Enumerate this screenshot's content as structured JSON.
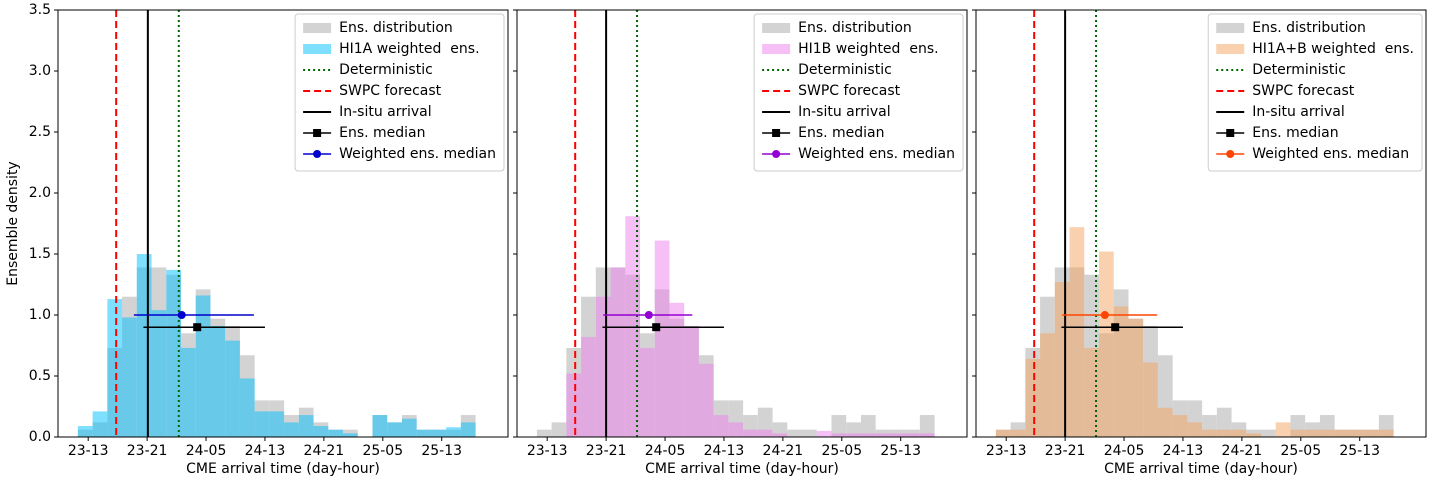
{
  "chart_data": [
    {
      "type": "histogram",
      "ylabel": "Ensemble density",
      "xlabel": "CME arrival time (day-hour)",
      "bins": [
        11.6,
        13.6,
        15.6,
        17.6,
        19.6,
        21.6,
        23.6,
        25.6,
        27.6,
        29.6,
        31.6,
        33.6,
        35.6,
        37.6,
        39.6,
        41.6,
        43.6,
        45.6,
        47.6,
        49.6,
        51.6,
        53.6,
        55.6,
        57.6,
        59.6,
        61.6,
        63.6,
        65.6
      ],
      "series": [
        {
          "name": "Ens. distribution",
          "color": "#d3d3d3",
          "alpha": 1,
          "values": [
            0.06,
            0.12,
            0.73,
            1.15,
            1.39,
            1.39,
            1.33,
            0.85,
            1.21,
            0.97,
            0.91,
            0.67,
            0.3,
            0.3,
            0.18,
            0.24,
            0.12,
            0.06,
            0.06,
            0,
            0.18,
            0.12,
            0.18,
            0.06,
            0.06,
            0.06,
            0.18
          ]
        },
        {
          "name": "HI1A weighted  ens.",
          "color": "#00bfff",
          "alpha": 0.5,
          "values": [
            0.09,
            0.21,
            1.13,
            0.98,
            1.5,
            1.04,
            1.37,
            0.73,
            1.16,
            0.91,
            0.79,
            0.48,
            0.21,
            0.21,
            0.12,
            0.18,
            0.09,
            0.06,
            0.03,
            0,
            0.18,
            0.12,
            0.15,
            0.06,
            0.06,
            0.08,
            0.12
          ]
        }
      ],
      "lines": [
        {
          "name": "Deterministic",
          "color": "#006400",
          "style": "dotted",
          "x": 25.3
        },
        {
          "name": "SWPC forecast",
          "color": "#ff0000",
          "style": "dashed",
          "x": 16.8
        },
        {
          "name": "In-situ arrival",
          "color": "#000000",
          "style": "solid",
          "x": 21.1
        }
      ],
      "medians": [
        {
          "name": "Ens. median",
          "color": "#000000",
          "marker": "square",
          "x": 27.8,
          "y": 0.9,
          "xmin": 20.5,
          "xmax": 37.0
        },
        {
          "name": "Weighted ens. median",
          "color": "#0000cd",
          "marker": "circle",
          "x": 25.7,
          "y": 1.0,
          "xmin": 19.2,
          "xmax": 35.5
        }
      ],
      "xlim": [
        8.9,
        70
      ],
      "ylim": [
        0,
        3.5
      ],
      "xticks": [
        {
          "value": 13,
          "label": "23-13"
        },
        {
          "value": 21,
          "label": "23-21"
        },
        {
          "value": 29,
          "label": "24-05"
        },
        {
          "value": 37,
          "label": "24-13"
        },
        {
          "value": 45,
          "label": "24-21"
        },
        {
          "value": 53,
          "label": "25-05"
        },
        {
          "value": 61,
          "label": "25-13"
        }
      ],
      "yticks": [
        {
          "value": 0,
          "label": "0.0"
        },
        0.5,
        {
          "value": 1,
          "label": "1.0"
        },
        1.5,
        {
          "value": 2,
          "label": "2.0"
        },
        2.5,
        {
          "value": 3,
          "label": "3.0"
        },
        3.5
      ],
      "legend": "upper right"
    },
    {
      "type": "histogram",
      "xlabel": "CME arrival time (day-hour)",
      "bins": [
        11.6,
        13.6,
        15.6,
        17.6,
        19.6,
        21.6,
        23.6,
        25.6,
        27.6,
        29.6,
        31.6,
        33.6,
        35.6,
        37.6,
        39.6,
        41.6,
        43.6,
        45.6,
        47.6,
        49.6,
        51.6,
        53.6,
        55.6,
        57.6,
        59.6,
        61.6,
        63.6,
        65.6
      ],
      "series": [
        {
          "name": "Ens. distribution",
          "color": "#d3d3d3",
          "alpha": 1,
          "values": [
            0.06,
            0.12,
            0.73,
            1.15,
            1.39,
            1.39,
            1.33,
            0.85,
            1.21,
            0.97,
            0.91,
            0.67,
            0.3,
            0.3,
            0.18,
            0.24,
            0.12,
            0.06,
            0.06,
            0,
            0.18,
            0.12,
            0.18,
            0.06,
            0.06,
            0.06,
            0.18
          ]
        },
        {
          "name": "HI1B weighted  ens.",
          "color": "#ee82ee",
          "alpha": 0.5,
          "values": [
            0,
            0,
            0.52,
            0.82,
            1.15,
            1.39,
            1.81,
            0.73,
            1.61,
            1.1,
            0.91,
            0.6,
            0.18,
            0.12,
            0.06,
            0.06,
            0.03,
            0,
            0,
            0.05,
            0.03,
            0.03,
            0.03,
            0.03,
            0.03,
            0.03,
            0.03
          ]
        }
      ],
      "lines": [
        {
          "name": "Deterministic",
          "color": "#006400",
          "style": "dotted",
          "x": 25.2
        },
        {
          "name": "SWPC forecast",
          "color": "#ff0000",
          "style": "dashed",
          "x": 16.8
        },
        {
          "name": "In-situ arrival",
          "color": "#000000",
          "style": "solid",
          "x": 21.0
        }
      ],
      "medians": [
        {
          "name": "Ens. median",
          "color": "#000000",
          "marker": "square",
          "x": 27.8,
          "y": 0.9,
          "xmin": 20.5,
          "xmax": 37.0
        },
        {
          "name": "Weighted ens. median",
          "color": "#9400d3",
          "marker": "circle",
          "x": 26.8,
          "y": 1.0,
          "xmin": 20.6,
          "xmax": 32.7
        }
      ],
      "xlim": [
        8.9,
        70
      ],
      "ylim": [
        0,
        3.5
      ],
      "xticks": [
        {
          "value": 13,
          "label": "23-13"
        },
        {
          "value": 21,
          "label": "23-21"
        },
        {
          "value": 29,
          "label": "24-05"
        },
        {
          "value": 37,
          "label": "24-13"
        },
        {
          "value": 45,
          "label": "24-21"
        },
        {
          "value": 53,
          "label": "25-05"
        },
        {
          "value": 61,
          "label": "25-13"
        }
      ],
      "legend": "upper right"
    },
    {
      "type": "histogram",
      "xlabel": "CME arrival time (day-hour)",
      "bins": [
        11.6,
        13.6,
        15.6,
        17.6,
        19.6,
        21.6,
        23.6,
        25.6,
        27.6,
        29.6,
        31.6,
        33.6,
        35.6,
        37.6,
        39.6,
        41.6,
        43.6,
        45.6,
        47.6,
        49.6,
        51.6,
        53.6,
        55.6,
        57.6,
        59.6,
        61.6,
        63.6,
        65.6
      ],
      "series": [
        {
          "name": "Ens. distribution",
          "color": "#d3d3d3",
          "alpha": 1,
          "values": [
            0.06,
            0.12,
            0.73,
            1.15,
            1.39,
            1.39,
            1.33,
            0.85,
            1.21,
            0.97,
            0.91,
            0.67,
            0.3,
            0.3,
            0.18,
            0.24,
            0.12,
            0.06,
            0.06,
            0,
            0.18,
            0.12,
            0.18,
            0.06,
            0.06,
            0.06,
            0.18
          ]
        },
        {
          "name": "HI1A+B weighted  ens.",
          "color": "#f4a460",
          "alpha": 0.5,
          "values": [
            0.06,
            0.06,
            0.64,
            0.85,
            1.27,
            1.72,
            0.73,
            1.52,
            1.07,
            0.97,
            0.61,
            0.24,
            0.18,
            0.12,
            0.06,
            0.06,
            0.06,
            0.03,
            0,
            0.12,
            0.06,
            0.06,
            0.06,
            0.06,
            0.06,
            0.06,
            0.06
          ]
        }
      ],
      "lines": [
        {
          "name": "Deterministic",
          "color": "#006400",
          "style": "dotted",
          "x": 25.2
        },
        {
          "name": "SWPC forecast",
          "color": "#ff0000",
          "style": "dashed",
          "x": 16.8
        },
        {
          "name": "In-situ arrival",
          "color": "#000000",
          "style": "solid",
          "x": 21.0
        }
      ],
      "medians": [
        {
          "name": "Ens. median",
          "color": "#000000",
          "marker": "square",
          "x": 27.8,
          "y": 0.9,
          "xmin": 20.5,
          "xmax": 37.0
        },
        {
          "name": "Weighted ens. median",
          "color": "#ff4500",
          "marker": "circle",
          "x": 26.4,
          "y": 1.0,
          "xmin": 20.6,
          "xmax": 33.5
        }
      ],
      "xlim": [
        8.9,
        70
      ],
      "ylim": [
        0,
        3.5
      ],
      "xticks": [
        {
          "value": 13,
          "label": "23-13"
        },
        {
          "value": 21,
          "label": "23-21"
        },
        {
          "value": 29,
          "label": "24-05"
        },
        {
          "value": 37,
          "label": "24-13"
        },
        {
          "value": 45,
          "label": "24-21"
        },
        {
          "value": 53,
          "label": "25-05"
        },
        {
          "value": 61,
          "label": "25-13"
        }
      ],
      "legend": "upper right"
    }
  ]
}
